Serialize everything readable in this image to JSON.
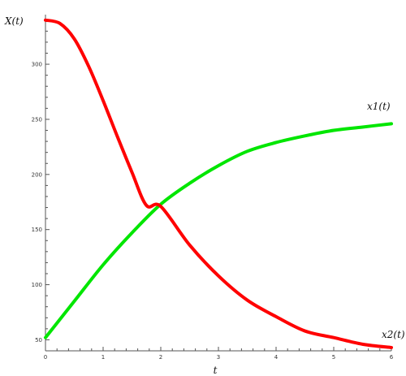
{
  "chart_data": {
    "type": "line",
    "title": "",
    "xlabel": "t",
    "ylabel": "X(t)",
    "xlim": [
      0,
      6
    ],
    "ylim": [
      40,
      345
    ],
    "x_ticks": [
      "0",
      "1",
      "2",
      "3",
      "4",
      "5",
      "6"
    ],
    "y_ticks": [
      "50",
      "100",
      "150",
      "200",
      "250",
      "300"
    ],
    "grid": false,
    "legend": "none",
    "series": [
      {
        "name": "x1(t)",
        "color": "#00e600",
        "x": [
          0,
          0.5,
          1,
          1.5,
          2,
          2.5,
          3,
          3.5,
          4,
          4.5,
          5,
          5.5,
          6
        ],
        "y": [
          52,
          85,
          118,
          147,
          173,
          192,
          208,
          221,
          229,
          235,
          240,
          243,
          246
        ]
      },
      {
        "name": "x2(t)",
        "color": "#ff0000",
        "x": [
          0,
          0.25,
          0.5,
          0.75,
          1,
          1.25,
          1.5,
          1.75,
          2,
          2.5,
          3,
          3.5,
          4,
          4.5,
          5,
          5.5,
          6
        ],
        "y": [
          340,
          337,
          323,
          298,
          267,
          234,
          202,
          172,
          171,
          136,
          108,
          86,
          71,
          58,
          52,
          46,
          43
        ]
      }
    ]
  }
}
